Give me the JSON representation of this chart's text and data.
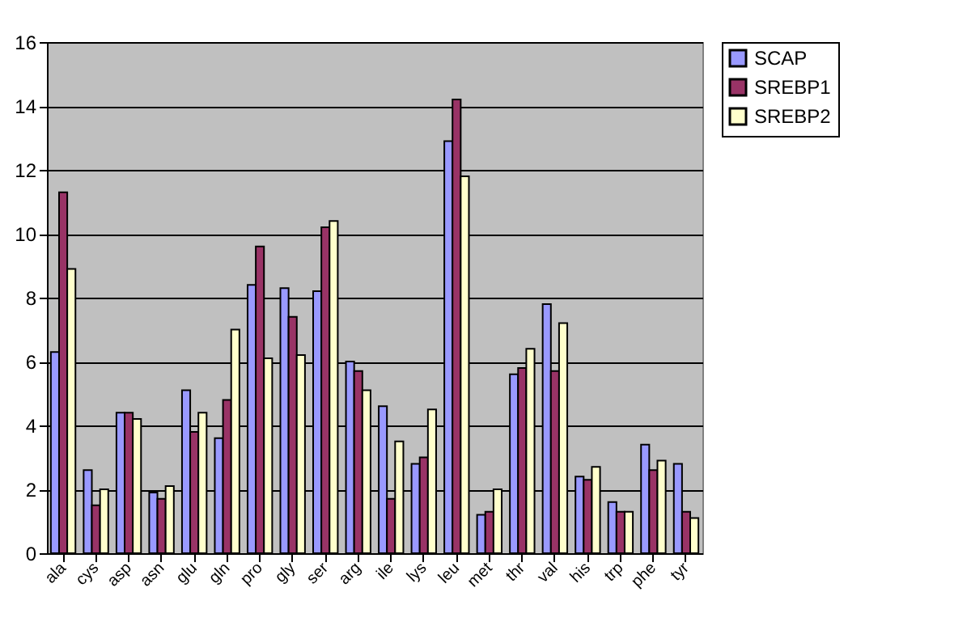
{
  "chart_data": {
    "type": "bar",
    "categories": [
      "ala",
      "cys",
      "asp",
      "asn",
      "glu",
      "gln",
      "pro",
      "gly",
      "ser",
      "arg",
      "ile",
      "lys",
      "leu",
      "met",
      "thr",
      "val",
      "his",
      "trp",
      "phe",
      "tyr"
    ],
    "series": [
      {
        "name": "SCAP",
        "color": "#9999ff",
        "values": [
          6.3,
          2.6,
          4.4,
          1.9,
          5.1,
          3.6,
          8.4,
          8.3,
          8.2,
          6.0,
          4.6,
          2.8,
          12.9,
          1.2,
          5.6,
          7.8,
          2.4,
          1.6,
          3.4,
          2.8
        ]
      },
      {
        "name": "SREBP1",
        "color": "#993366",
        "values": [
          11.3,
          1.5,
          4.4,
          1.7,
          3.8,
          4.8,
          9.6,
          7.4,
          10.2,
          5.7,
          1.7,
          3.0,
          14.2,
          1.3,
          5.8,
          5.7,
          2.3,
          1.3,
          2.6,
          1.3
        ]
      },
      {
        "name": "SREBP2",
        "color": "#ffffcc",
        "values": [
          8.9,
          2.0,
          4.2,
          2.1,
          4.4,
          7.0,
          6.1,
          6.2,
          10.4,
          5.1,
          3.5,
          4.5,
          11.8,
          2.0,
          6.4,
          7.2,
          2.7,
          1.3,
          2.9,
          1.1
        ]
      }
    ],
    "ylim": [
      0,
      16
    ],
    "yticks": [
      0,
      2,
      4,
      6,
      8,
      10,
      12,
      14,
      16
    ],
    "grid": "y",
    "legend": "right"
  }
}
